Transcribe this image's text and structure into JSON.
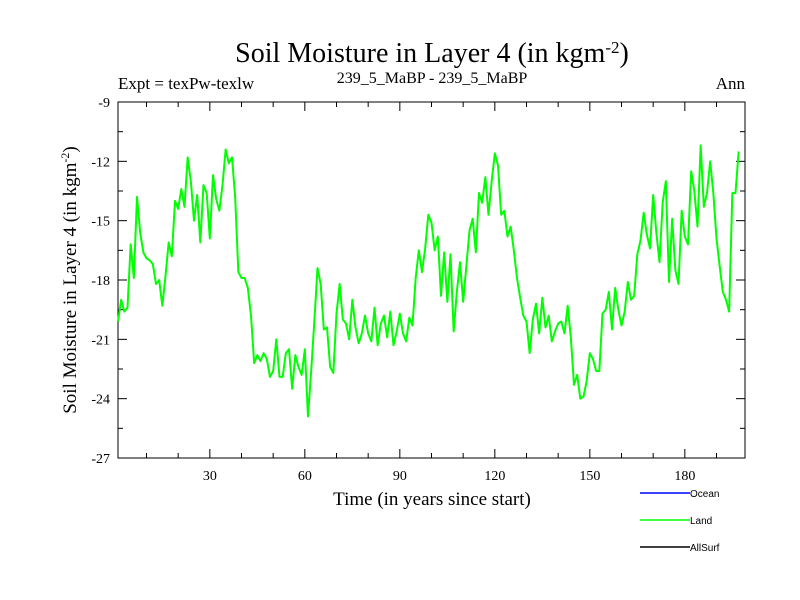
{
  "chart_data": {
    "type": "line",
    "title": "Soil Moisture in Layer 4 (in kgm",
    "title_superscript": "-2",
    "title_close": ")",
    "subtitle_left": "Expt = texPw-texlw",
    "subtitle_center": "239_5_MaBP - 239_5_MaBP",
    "subtitle_right": "Ann",
    "xlabel": "Time (in years since start)",
    "ylabel": "Soil Moisture in Layer 4 (in kgm",
    "ylabel_superscript": "-2",
    "ylabel_close": ")",
    "xlim": [
      1,
      199
    ],
    "ylim": [
      -27,
      -9
    ],
    "xticks": [
      30,
      60,
      90,
      120,
      150,
      180
    ],
    "yticks": [
      -9,
      -12,
      -15,
      -18,
      -21,
      -24,
      -27
    ],
    "legend_position": "bottom-right",
    "legend": [
      {
        "name": "Ocean",
        "color": "#0000ff"
      },
      {
        "name": "Land",
        "color": "#00ff00"
      },
      {
        "name": "AllSurf",
        "color": "#000000"
      }
    ],
    "series": [
      {
        "name": "Land",
        "color": "#00ff00",
        "x_start": 1,
        "x_step": 1,
        "values": [
          -20.1,
          -19.0,
          -19.6,
          -19.4,
          -16.2,
          -17.9,
          -13.8,
          -15.6,
          -16.6,
          -16.9,
          -17.0,
          -17.2,
          -18.2,
          -18.0,
          -19.3,
          -17.8,
          -16.1,
          -16.8,
          -14.0,
          -14.4,
          -13.4,
          -14.3,
          -11.8,
          -13.0,
          -15.0,
          -13.7,
          -16.1,
          -13.2,
          -13.6,
          -15.9,
          -12.7,
          -13.9,
          -14.5,
          -13.2,
          -11.4,
          -12.1,
          -11.8,
          -13.8,
          -17.6,
          -17.9,
          -17.9,
          -18.4,
          -19.8,
          -22.2,
          -21.8,
          -22.1,
          -21.7,
          -22.0,
          -22.9,
          -22.6,
          -21.0,
          -22.9,
          -22.9,
          -21.7,
          -21.5,
          -23.5,
          -21.8,
          -22.4,
          -22.8,
          -21.5,
          -24.9,
          -22.6,
          -20.1,
          -17.4,
          -18.2,
          -20.5,
          -20.4,
          -22.4,
          -22.7,
          -19.7,
          -18.2,
          -20.0,
          -20.2,
          -21.0,
          -19.0,
          -20.4,
          -21.2,
          -20.7,
          -19.8,
          -20.7,
          -21.1,
          -19.4,
          -21.3,
          -20.2,
          -19.8,
          -20.9,
          -19.6,
          -21.3,
          -20.6,
          -19.7,
          -20.7,
          -21.1,
          -19.9,
          -20.3,
          -17.9,
          -16.5,
          -17.6,
          -16.4,
          -14.7,
          -15.1,
          -16.5,
          -15.8,
          -18.8,
          -16.6,
          -19.1,
          -16.7,
          -20.6,
          -18.6,
          -17.1,
          -19.1,
          -17.3,
          -15.5,
          -14.9,
          -16.6,
          -13.6,
          -14.1,
          -12.8,
          -14.7,
          -13.0,
          -11.6,
          -12.2,
          -14.7,
          -14.5,
          -15.8,
          -15.3,
          -16.5,
          -17.9,
          -18.9,
          -19.8,
          -20.1,
          -21.7,
          -20.0,
          -19.2,
          -20.7,
          -18.9,
          -20.4,
          -19.8,
          -21.1,
          -20.6,
          -20.2,
          -20.1,
          -20.7,
          -19.3,
          -20.9,
          -23.3,
          -22.8,
          -24.0,
          -23.9,
          -23.1,
          -21.7,
          -22.0,
          -22.6,
          -22.6,
          -19.7,
          -19.5,
          -18.6,
          -20.5,
          -18.4,
          -19.5,
          -20.3,
          -19.6,
          -18.1,
          -19.0,
          -18.8,
          -16.7,
          -16.0,
          -14.6,
          -15.7,
          -16.4,
          -13.7,
          -15.6,
          -17.1,
          -14.1,
          -13.0,
          -18.1,
          -14.9,
          -17.5,
          -18.2,
          -14.5,
          -15.8,
          -16.2,
          -12.5,
          -13.5,
          -15.3,
          -11.2,
          -14.3,
          -13.6,
          -12.0,
          -13.6,
          -15.9,
          -17.3,
          -18.6,
          -19.0,
          -19.6,
          -13.6,
          -13.6,
          -11.5
        ]
      }
    ]
  }
}
